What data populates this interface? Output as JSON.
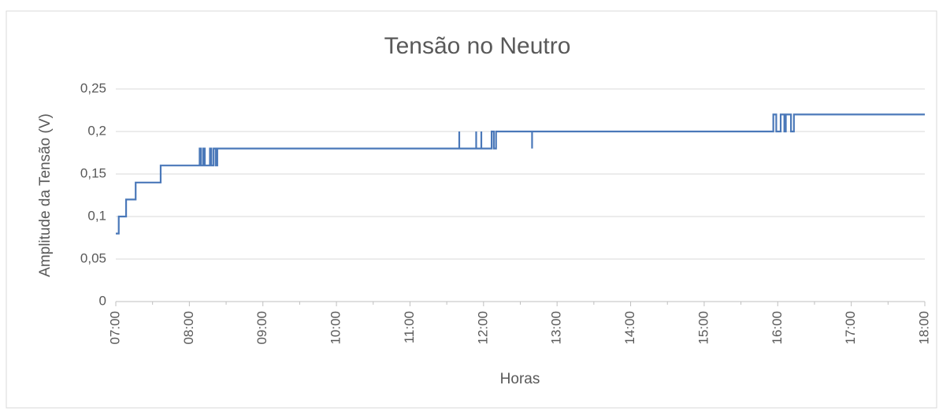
{
  "chart_data": {
    "type": "line",
    "title": "Tensão no Neutro",
    "x_label": "Horas",
    "y_label": "Amplitude da Tensão (V)",
    "series": [
      {
        "name": "Tensão no Neutro",
        "color": "#4a78b9",
        "x": [
          7,
          7.04,
          7.04,
          7.14,
          7.14,
          7.27,
          7.27,
          7.61,
          7.61,
          8.14,
          8.14,
          8.16,
          8.16,
          8.19,
          8.19,
          8.21,
          8.21,
          8.28,
          8.28,
          8.3,
          8.3,
          8.33,
          8.33,
          8.36,
          8.36,
          8.38,
          8.38,
          11.67,
          11.67,
          11.67,
          11.9,
          11.9,
          11.9,
          11.97,
          11.97,
          11.97,
          12.11,
          12.11,
          12.14,
          12.14,
          12.17,
          12.17,
          12.66,
          12.66,
          12.66,
          15.94,
          15.94,
          15.98,
          15.98,
          16.04,
          16.04,
          16.09,
          16.09,
          16.11,
          16.11,
          16.18,
          16.18,
          16.22,
          16.22,
          18
        ],
        "values": [
          0.08,
          0.08,
          0.1,
          0.1,
          0.12,
          0.12,
          0.14,
          0.14,
          0.16,
          0.16,
          0.18,
          0.18,
          0.16,
          0.16,
          0.18,
          0.18,
          0.16,
          0.16,
          0.18,
          0.18,
          0.16,
          0.16,
          0.18,
          0.18,
          0.16,
          0.16,
          0.18,
          0.18,
          0.2,
          0.18,
          0.18,
          0.2,
          0.18,
          0.18,
          0.2,
          0.18,
          0.18,
          0.2,
          0.2,
          0.18,
          0.18,
          0.2,
          0.2,
          0.18,
          0.2,
          0.2,
          0.22,
          0.22,
          0.2,
          0.2,
          0.22,
          0.22,
          0.2,
          0.2,
          0.22,
          0.22,
          0.2,
          0.2,
          0.22,
          0.22
        ]
      }
    ],
    "xlim": [
      7,
      18
    ],
    "xticks": [
      {
        "value": 7,
        "label": "07:00"
      },
      {
        "value": 8,
        "label": "08:00"
      },
      {
        "value": 9,
        "label": "09:00"
      },
      {
        "value": 10,
        "label": "10:00"
      },
      {
        "value": 11,
        "label": "11:00"
      },
      {
        "value": 12,
        "label": "12:00"
      },
      {
        "value": 13,
        "label": "13:00"
      },
      {
        "value": 14,
        "label": "14:00"
      },
      {
        "value": 15,
        "label": "15:00"
      },
      {
        "value": 16,
        "label": "16:00"
      },
      {
        "value": 17,
        "label": "17:00"
      },
      {
        "value": 18,
        "label": "18:00"
      }
    ],
    "ylim": [
      0,
      0.25
    ],
    "yticks": [
      0,
      {
        "value": 0.05,
        "label": "0,05"
      },
      {
        "value": 0.1,
        "label": "0,1"
      },
      {
        "value": 0.15,
        "label": "0,15"
      },
      {
        "value": 0.2,
        "label": "0,2"
      },
      {
        "value": 0.25,
        "label": "0,25"
      }
    ],
    "grid": true
  }
}
